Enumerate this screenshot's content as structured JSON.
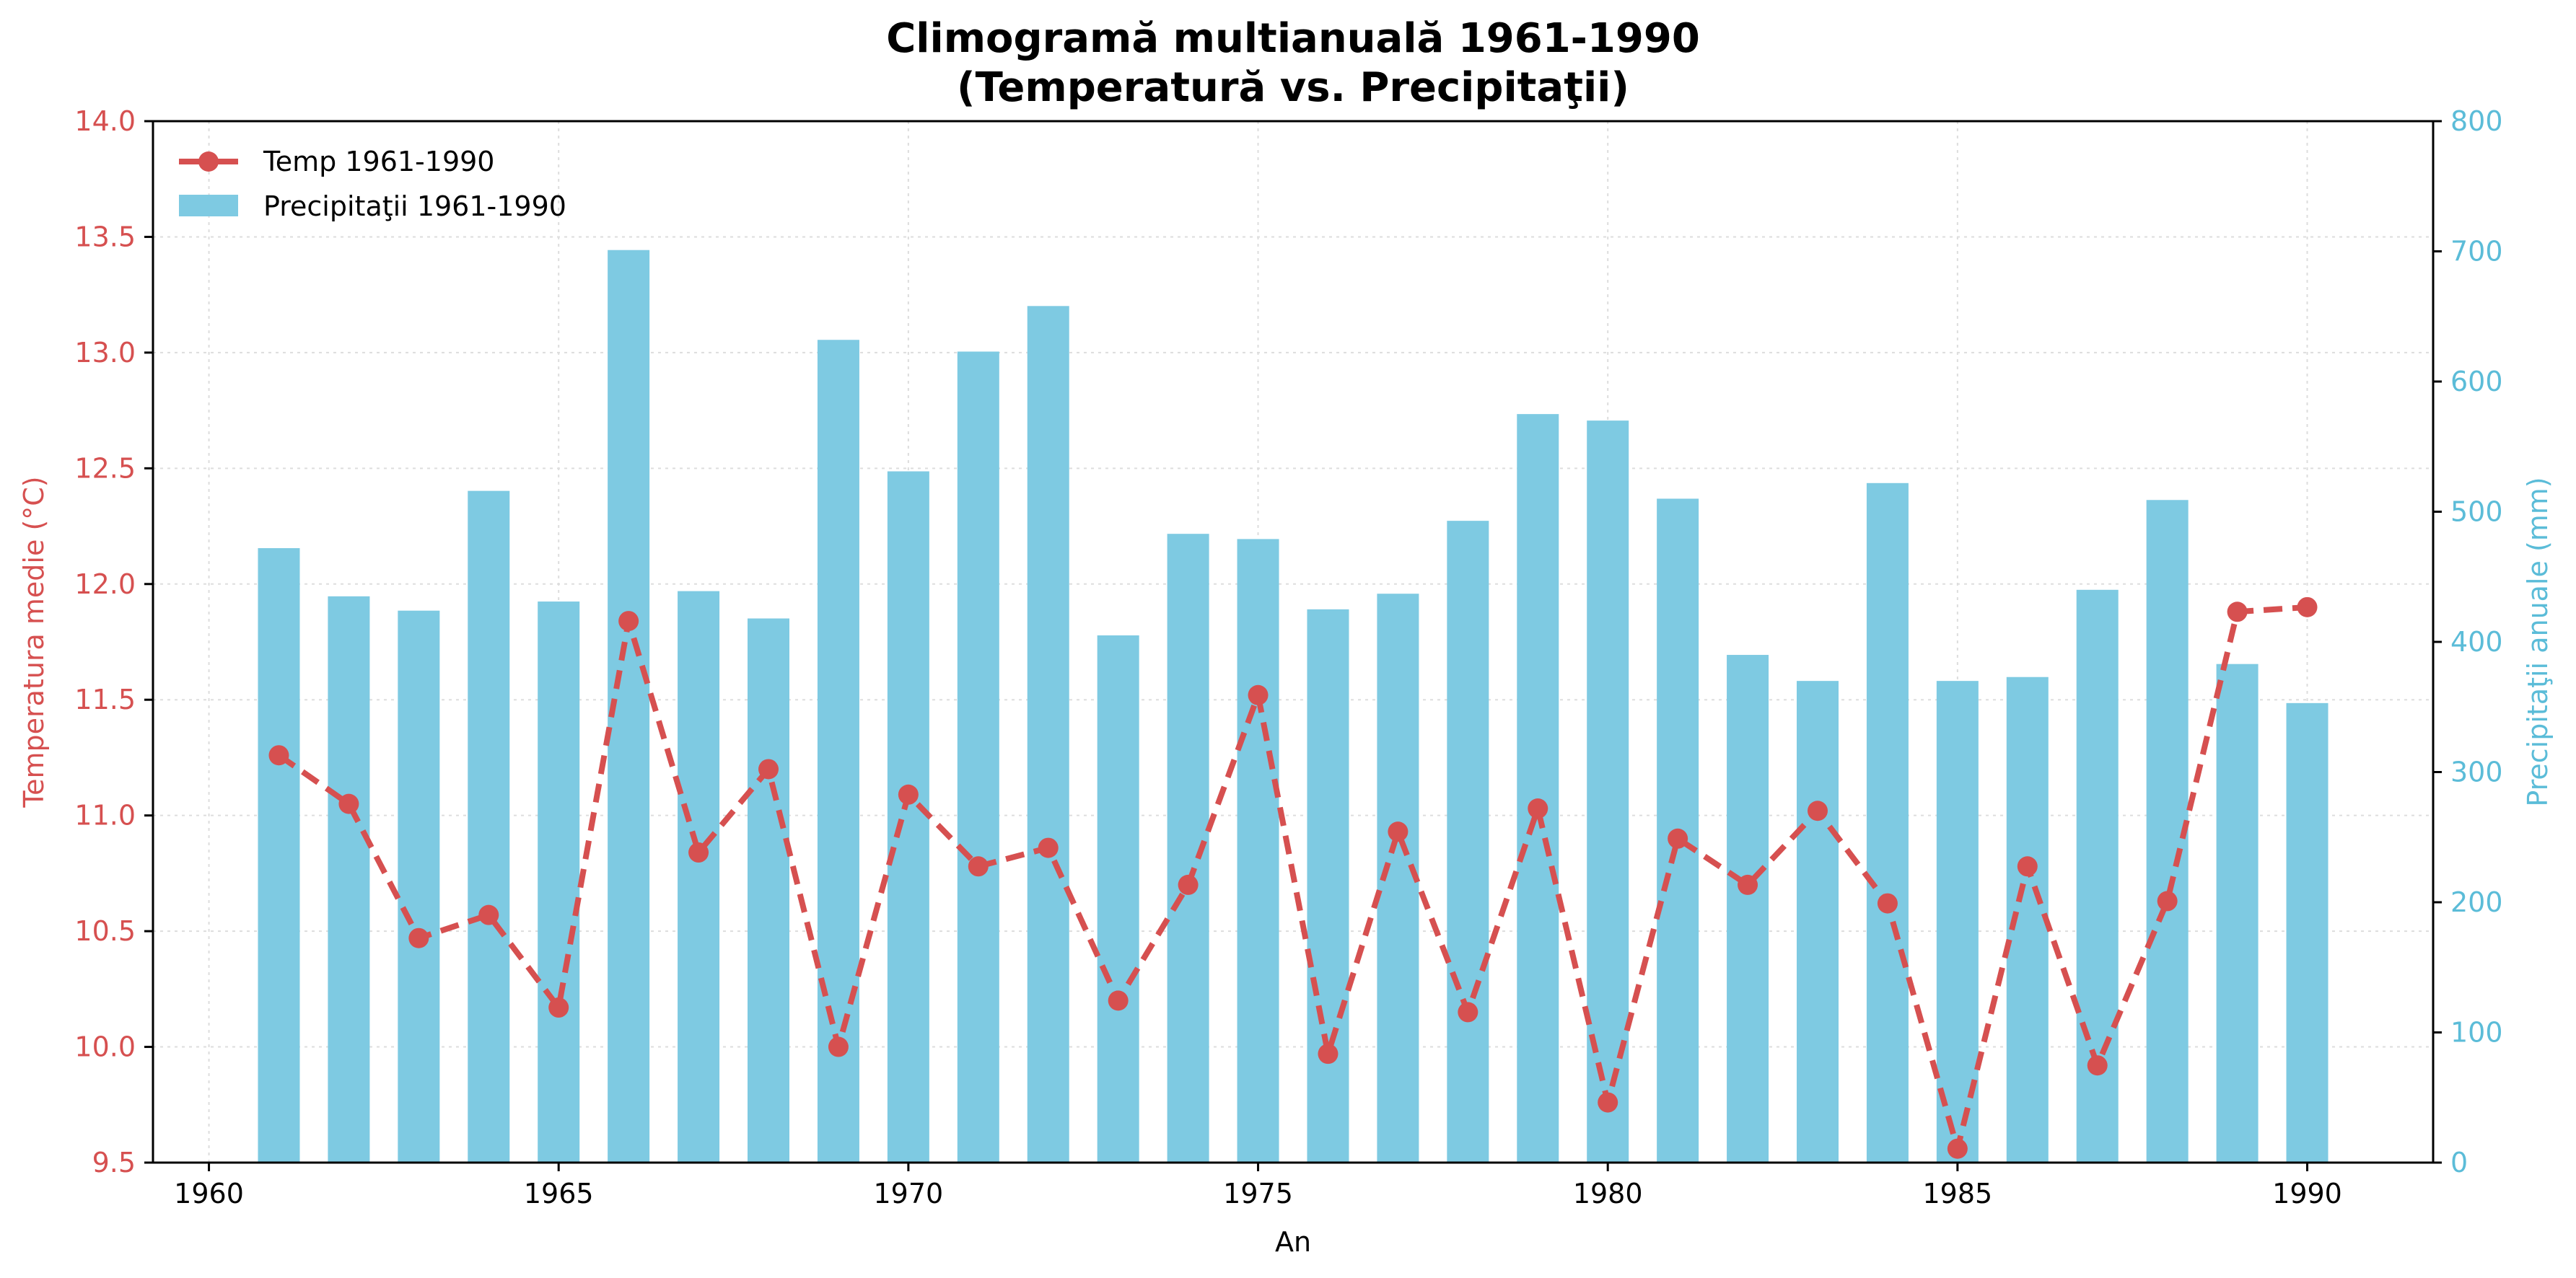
{
  "chart_data": {
    "type": "bar+line",
    "title_line1": "Climogramă multianuală 1961-1990",
    "title_line2": "(Temperatură vs. Precipitaţii)",
    "xlabel": "An",
    "ylabel_left": "Temperatura medie (°C)",
    "ylabel_right": "Precipitaţii anuale (mm)",
    "xlim": [
      1959.2,
      1991.8
    ],
    "ylim_left": [
      9.5,
      14.0
    ],
    "ylim_right": [
      0,
      800
    ],
    "x_ticks": [
      "1960",
      "1965",
      "1970",
      "1975",
      "1980",
      "1985",
      "1990"
    ],
    "y_left_ticks": [
      "9.5",
      "10.0",
      "10.5",
      "11.0",
      "11.5",
      "12.0",
      "12.5",
      "13.0",
      "13.5",
      "14.0"
    ],
    "y_right_ticks": [
      "0",
      "100",
      "200",
      "300",
      "400",
      "500",
      "600",
      "700",
      "800"
    ],
    "grid": true,
    "legend_position": "top-left",
    "x": [
      1961,
      1962,
      1963,
      1964,
      1965,
      1966,
      1967,
      1968,
      1969,
      1970,
      1971,
      1972,
      1973,
      1974,
      1975,
      1976,
      1977,
      1978,
      1979,
      1980,
      1981,
      1982,
      1983,
      1984,
      1985,
      1986,
      1987,
      1988,
      1989,
      1990
    ],
    "series": [
      {
        "name": "Temp 1961-1990",
        "kind": "line",
        "axis": "left",
        "color": "#d65050",
        "values": [
          11.26,
          11.05,
          10.47,
          10.57,
          10.17,
          11.84,
          10.84,
          11.2,
          10.0,
          11.09,
          10.78,
          10.86,
          10.2,
          10.7,
          11.52,
          9.97,
          10.93,
          10.15,
          11.03,
          9.76,
          10.9,
          10.7,
          11.02,
          10.62,
          9.56,
          10.78,
          9.92,
          10.63,
          11.88,
          11.9
        ]
      },
      {
        "name": "Precipitaţii 1961-1990",
        "kind": "bar",
        "axis": "right",
        "color": "#7ecae2",
        "values": [
          472,
          435,
          424,
          516,
          431,
          701,
          439,
          418,
          632,
          531,
          623,
          658,
          405,
          483,
          479,
          425,
          437,
          493,
          575,
          570,
          510,
          390,
          370,
          522,
          370,
          373,
          440,
          509,
          383,
          353
        ]
      }
    ],
    "colors": {
      "temp": "#d65050",
      "precip": "#7ecae2",
      "grid": "#dddddd",
      "axis": "#000000"
    }
  }
}
